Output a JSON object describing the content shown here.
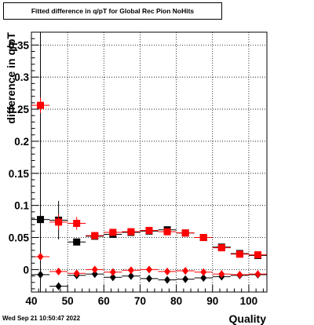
{
  "chart_data": {
    "type": "scatter",
    "title": "Fitted difference in q/pT for Global Rec Pion NoHits",
    "xlabel": "Quality",
    "ylabel": "difference in q/pT",
    "xlim": [
      40,
      105
    ],
    "ylim": [
      -0.035,
      0.37
    ],
    "x_ticks": [
      "40",
      "50",
      "60",
      "70",
      "80",
      "90",
      "100"
    ],
    "y_ticks": [
      "0",
      "0.05",
      "0.1",
      "0.15",
      "0.2",
      "0.25",
      "0.3",
      "0.35"
    ],
    "grid": true,
    "series": [
      {
        "marker": "square",
        "color": "#000000",
        "x": [
          42.5,
          47.5,
          52.5,
          57.5,
          62.5,
          67.5,
          72.5,
          77.5,
          82.5,
          87.5,
          92.5,
          97.5,
          102.5
        ],
        "y": [
          0.078,
          0.077,
          0.043,
          0.052,
          0.055,
          0.058,
          0.06,
          0.062,
          0.057,
          0.05,
          0.035,
          0.025,
          0.022
        ],
        "yerr": [
          0.36,
          0.03,
          0.005,
          0.004,
          0.004,
          0.004,
          0.004,
          0.004,
          0.004,
          0.004,
          0.004,
          0.004,
          0.004
        ]
      },
      {
        "marker": "square",
        "color": "#ff0000",
        "x": [
          42.5,
          47.5,
          52.5,
          57.5,
          62.5,
          67.5,
          72.5,
          77.5,
          82.5,
          87.5,
          92.5,
          97.5,
          102.5
        ],
        "y": [
          0.256,
          0.074,
          0.072,
          0.053,
          0.058,
          0.059,
          0.061,
          0.059,
          0.057,
          0.05,
          0.034,
          0.024,
          0.023
        ],
        "yerr": [
          0.012,
          0.012,
          0.01,
          0.004,
          0.004,
          0.004,
          0.004,
          0.004,
          0.004,
          0.004,
          0.004,
          0.004,
          0.004
        ]
      },
      {
        "marker": "diamond",
        "color": "#000000",
        "x": [
          42.5,
          47.5,
          52.5,
          57.5,
          62.5,
          67.5,
          72.5,
          77.5,
          82.5,
          87.5,
          92.5,
          97.5,
          102.5
        ],
        "y": [
          -0.008,
          -0.026,
          -0.009,
          -0.007,
          -0.012,
          -0.01,
          -0.014,
          -0.016,
          -0.015,
          -0.013,
          -0.011,
          -0.009,
          -0.008
        ],
        "yerr": [
          0.004,
          0.006,
          0.003,
          0.002,
          0.002,
          0.002,
          0.002,
          0.002,
          0.002,
          0.002,
          0.002,
          0.002,
          0.002
        ]
      },
      {
        "marker": "diamond",
        "color": "#ff0000",
        "x": [
          42.5,
          47.5,
          52.5,
          57.5,
          62.5,
          67.5,
          72.5,
          77.5,
          82.5,
          87.5,
          92.5,
          97.5,
          102.5
        ],
        "y": [
          0.02,
          -0.003,
          -0.006,
          0.0,
          -0.004,
          -0.001,
          0.0,
          -0.003,
          -0.002,
          -0.004,
          -0.007,
          -0.008,
          -0.007
        ],
        "yerr": [
          0.004,
          0.004,
          0.003,
          0.002,
          0.002,
          0.002,
          0.002,
          0.002,
          0.002,
          0.002,
          0.002,
          0.002,
          0.002
        ]
      }
    ]
  },
  "footer": {
    "timestamp": "Wed Sep 21 10:50:47 2022"
  }
}
